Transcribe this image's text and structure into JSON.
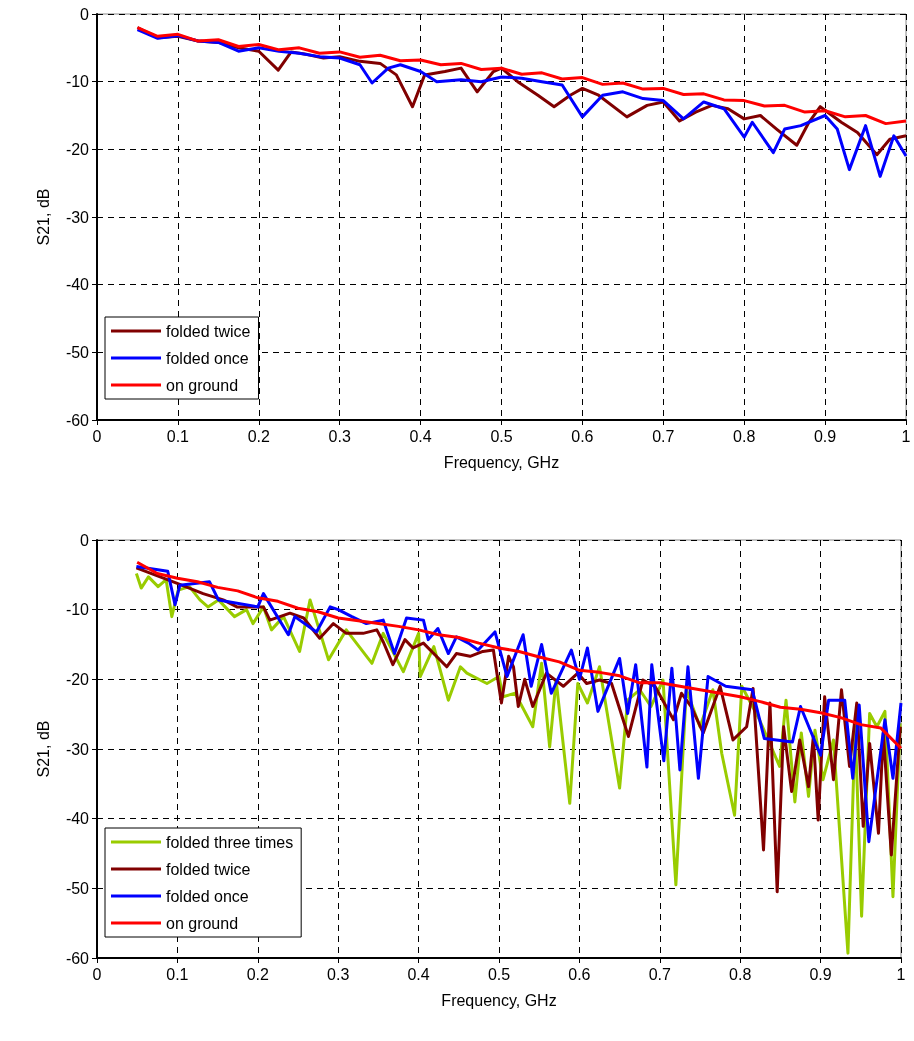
{
  "chart_data": [
    {
      "type": "line",
      "xlabel": "Frequency, GHz",
      "ylabel": "S21, dB",
      "xlim": [
        0,
        1
      ],
      "ylim": [
        -60,
        0
      ],
      "xticks": [
        0,
        0.1,
        0.2,
        0.3,
        0.4,
        0.5,
        0.6,
        0.7,
        0.8,
        0.9,
        1
      ],
      "yticks": [
        -60,
        -50,
        -40,
        -30,
        -20,
        -10,
        0
      ],
      "grid": true,
      "legend": "bottom left",
      "series": [
        {
          "name": "folded twice",
          "color": "#800000",
          "x": [
            0.05,
            0.075,
            0.1,
            0.125,
            0.15,
            0.175,
            0.2,
            0.224,
            0.24,
            0.26,
            0.28,
            0.3,
            0.325,
            0.35,
            0.37,
            0.39,
            0.405,
            0.43,
            0.45,
            0.47,
            0.49,
            0.5,
            0.52,
            0.545,
            0.565,
            0.585,
            0.6,
            0.62,
            0.655,
            0.68,
            0.7,
            0.72,
            0.74,
            0.76,
            0.78,
            0.8,
            0.82,
            0.84,
            0.865,
            0.88,
            0.894,
            0.92,
            0.94,
            0.964,
            0.98,
            1
          ],
          "values": [
            -2,
            -3.5,
            -3.3,
            -4,
            -4.2,
            -5,
            -5.5,
            -8.3,
            -5.6,
            -6,
            -6.5,
            -6.3,
            -7,
            -7.3,
            -9,
            -13.7,
            -9,
            -8.5,
            -8,
            -11.5,
            -8.5,
            -8,
            -10,
            -12,
            -13.7,
            -12,
            -11,
            -12,
            -15.2,
            -13.5,
            -13,
            -15.8,
            -14.5,
            -13.5,
            -14,
            -15.5,
            -15,
            -17,
            -19.4,
            -16,
            -13.7,
            -16,
            -17.5,
            -20.8,
            -18.5,
            -18
          ]
        },
        {
          "name": "folded once",
          "color": "#0000ff",
          "x": [
            0.05,
            0.075,
            0.1,
            0.125,
            0.15,
            0.175,
            0.2,
            0.225,
            0.25,
            0.275,
            0.3,
            0.325,
            0.34,
            0.36,
            0.375,
            0.4,
            0.42,
            0.45,
            0.475,
            0.5,
            0.525,
            0.55,
            0.575,
            0.6,
            0.625,
            0.65,
            0.675,
            0.7,
            0.725,
            0.75,
            0.775,
            0.8,
            0.81,
            0.836,
            0.85,
            0.87,
            0.9,
            0.915,
            0.93,
            0.95,
            0.968,
            0.985,
            1
          ],
          "values": [
            -2.3,
            -3.6,
            -3.2,
            -4,
            -4.2,
            -5.5,
            -5,
            -5.5,
            -5.8,
            -6.3,
            -6.5,
            -7.5,
            -10.2,
            -8,
            -7.5,
            -8.5,
            -10,
            -9.7,
            -10,
            -9.3,
            -9.5,
            -10,
            -10.5,
            -15.2,
            -12,
            -11.5,
            -12.5,
            -12.8,
            -15.5,
            -13,
            -14,
            -18.2,
            -16,
            -20.5,
            -17,
            -16.5,
            -15,
            -17,
            -23,
            -16.5,
            -24,
            -18,
            -21
          ]
        },
        {
          "name": "on ground",
          "color": "#ff0000",
          "x": [
            0.05,
            0.075,
            0.1,
            0.125,
            0.15,
            0.175,
            0.2,
            0.225,
            0.25,
            0.275,
            0.3,
            0.325,
            0.35,
            0.375,
            0.4,
            0.425,
            0.45,
            0.475,
            0.5,
            0.525,
            0.55,
            0.575,
            0.6,
            0.625,
            0.65,
            0.675,
            0.7,
            0.725,
            0.75,
            0.775,
            0.8,
            0.825,
            0.85,
            0.875,
            0.9,
            0.925,
            0.95,
            0.975,
            1
          ],
          "values": [
            -2,
            -3.3,
            -3,
            -4,
            -3.8,
            -4.8,
            -4.5,
            -5.3,
            -5,
            -5.8,
            -5.6,
            -6.4,
            -6.1,
            -6.9,
            -6.8,
            -7.5,
            -7.3,
            -8.2,
            -8,
            -8.9,
            -8.7,
            -9.6,
            -9.4,
            -10.4,
            -10.2,
            -11.1,
            -11,
            -11.9,
            -11.8,
            -12.7,
            -12.8,
            -13.6,
            -13.5,
            -14.5,
            -14.3,
            -15.2,
            -15,
            -16.2,
            -15.8
          ]
        }
      ]
    },
    {
      "type": "line",
      "xlabel": "Frequency, GHz",
      "ylabel": "S21, dB",
      "xlim": [
        0,
        1
      ],
      "ylim": [
        -60,
        0
      ],
      "xticks": [
        0,
        0.1,
        0.2,
        0.3,
        0.4,
        0.5,
        0.6,
        0.7,
        0.8,
        0.9,
        1
      ],
      "yticks": [
        -60,
        -50,
        -40,
        -30,
        -20,
        -10,
        0
      ],
      "grid": true,
      "legend": "bottom left",
      "series": [
        {
          "name": "folded three times",
          "color": "#99cc00",
          "x": [
            0.049,
            0.055,
            0.064,
            0.076,
            0.086,
            0.093,
            0.101,
            0.115,
            0.128,
            0.138,
            0.151,
            0.171,
            0.186,
            0.194,
            0.207,
            0.217,
            0.232,
            0.252,
            0.265,
            0.288,
            0.31,
            0.342,
            0.356,
            0.381,
            0.4,
            0.402,
            0.419,
            0.437,
            0.452,
            0.46,
            0.485,
            0.5,
            0.505,
            0.52,
            0.542,
            0.553,
            0.563,
            0.571,
            0.588,
            0.598,
            0.61,
            0.625,
            0.65,
            0.66,
            0.675,
            0.689,
            0.704,
            0.72,
            0.733,
            0.75,
            0.766,
            0.777,
            0.793,
            0.802,
            0.824,
            0.849,
            0.857,
            0.868,
            0.876,
            0.885,
            0.893,
            0.903,
            0.916,
            0.934,
            0.943,
            0.951,
            0.961,
            0.97,
            0.98,
            0.99,
            0.999
          ],
          "values": [
            -4.8,
            -6.9,
            -5.3,
            -6.7,
            -5.7,
            -11,
            -7.2,
            -6.7,
            -8.6,
            -9.6,
            -8.6,
            -11,
            -10,
            -12,
            -9.6,
            -12.9,
            -11,
            -16,
            -8.6,
            -17.2,
            -12.9,
            -17.7,
            -13.4,
            -18.9,
            -13.4,
            -19.6,
            -15.3,
            -23,
            -18.2,
            -19.1,
            -20.6,
            -19.6,
            -22.5,
            -22,
            -26.8,
            -17.7,
            -29.7,
            -20.1,
            -37.8,
            -20.6,
            -23.4,
            -18.2,
            -35.6,
            -23,
            -21.5,
            -23.9,
            -20.1,
            -49.5,
            -21.5,
            -26.8,
            -21.5,
            -30.6,
            -39.5,
            -21,
            -25.8,
            -32.5,
            -23,
            -37.6,
            -27.7,
            -36.8,
            -27.3,
            -34.4,
            -28.7,
            -59.3,
            -26.8,
            -54,
            -24.9,
            -26.8,
            -24.6,
            -51.2,
            -26.3
          ]
        },
        {
          "name": "folded twice",
          "color": "#800000",
          "x": [
            0.049,
            0.099,
            0.132,
            0.157,
            0.174,
            0.207,
            0.215,
            0.24,
            0.257,
            0.277,
            0.294,
            0.31,
            0.331,
            0.348,
            0.356,
            0.368,
            0.383,
            0.393,
            0.406,
            0.435,
            0.447,
            0.464,
            0.48,
            0.493,
            0.503,
            0.512,
            0.518,
            0.524,
            0.532,
            0.542,
            0.559,
            0.58,
            0.598,
            0.609,
            0.625,
            0.64,
            0.661,
            0.679,
            0.694,
            0.717,
            0.727,
            0.739,
            0.754,
            0.775,
            0.791,
            0.808,
            0.816,
            0.829,
            0.837,
            0.846,
            0.854,
            0.864,
            0.874,
            0.885,
            0.891,
            0.897,
            0.905,
            0.916,
            0.926,
            0.936,
            0.945,
            0.953,
            0.961,
            0.972,
            0.978,
            0.988,
            0.999
          ],
          "values": [
            -4,
            -6.2,
            -7.7,
            -8.6,
            -9.6,
            -9.6,
            -11.5,
            -10.5,
            -11.2,
            -14.1,
            -12,
            -13.4,
            -13.4,
            -12.9,
            -14.6,
            -17.9,
            -14.3,
            -15.5,
            -14.8,
            -18.2,
            -16.3,
            -16.7,
            -16,
            -15.8,
            -23.4,
            -16.7,
            -18.2,
            -23.9,
            -20,
            -23.9,
            -19.1,
            -21,
            -19.1,
            -20.6,
            -20.1,
            -20.6,
            -28.2,
            -20.1,
            -21,
            -25.8,
            -22,
            -23.9,
            -27.7,
            -21,
            -28.7,
            -26.8,
            -21.3,
            -44.5,
            -23.4,
            -50.5,
            -26.8,
            -36.1,
            -28.7,
            -35.4,
            -28.2,
            -40.2,
            -22.5,
            -34.4,
            -21.5,
            -32.5,
            -23.4,
            -41.1,
            -29.2,
            -42.1,
            -27.7,
            -45.2,
            -26.8
          ]
        },
        {
          "name": "folded once",
          "color": "#0000ff",
          "x": [
            0.049,
            0.088,
            0.097,
            0.103,
            0.14,
            0.151,
            0.2,
            0.207,
            0.238,
            0.246,
            0.273,
            0.29,
            0.3,
            0.317,
            0.335,
            0.356,
            0.37,
            0.385,
            0.406,
            0.412,
            0.424,
            0.437,
            0.447,
            0.462,
            0.474,
            0.495,
            0.51,
            0.53,
            0.54,
            0.553,
            0.565,
            0.59,
            0.6,
            0.61,
            0.623,
            0.65,
            0.66,
            0.67,
            0.684,
            0.69,
            0.705,
            0.715,
            0.725,
            0.735,
            0.748,
            0.76,
            0.782,
            0.815,
            0.83,
            0.865,
            0.875,
            0.9,
            0.91,
            0.93,
            0.94,
            0.948,
            0.96,
            0.98,
            0.99,
            1
          ],
          "values": [
            -3.8,
            -4.5,
            -9.3,
            -6.5,
            -6,
            -8.6,
            -9.6,
            -7.7,
            -13.6,
            -11,
            -13.2,
            -9.6,
            -10,
            -11,
            -12,
            -11.5,
            -16.3,
            -11.2,
            -11.5,
            -14.3,
            -12.7,
            -16.3,
            -13.9,
            -14.8,
            -15.8,
            -13.2,
            -19.6,
            -13.6,
            -21,
            -15,
            -22,
            -15.8,
            -20,
            -15.5,
            -24.6,
            -17,
            -24.9,
            -17.9,
            -32.6,
            -17.9,
            -31.7,
            -18.4,
            -33,
            -18.2,
            -34.2,
            -19.6,
            -21,
            -21.5,
            -28.5,
            -29,
            -23.9,
            -30.9,
            -23,
            -23,
            -34.2,
            -23.7,
            -43.3,
            -25.8,
            -34.2,
            -23.4
          ]
        },
        {
          "name": "on ground",
          "color": "#ff0000",
          "x": [
            0.05,
            0.075,
            0.1,
            0.125,
            0.15,
            0.175,
            0.2,
            0.225,
            0.25,
            0.275,
            0.3,
            0.325,
            0.35,
            0.375,
            0.4,
            0.425,
            0.45,
            0.475,
            0.5,
            0.525,
            0.55,
            0.575,
            0.6,
            0.625,
            0.65,
            0.675,
            0.7,
            0.725,
            0.75,
            0.775,
            0.8,
            0.825,
            0.85,
            0.875,
            0.9,
            0.925,
            0.95,
            0.975,
            1
          ],
          "values": [
            -3.2,
            -4.8,
            -5.5,
            -6,
            -6.8,
            -7.3,
            -8.3,
            -8.8,
            -9.8,
            -10.3,
            -11.2,
            -11.6,
            -12,
            -12.4,
            -12.9,
            -13.6,
            -14,
            -14.8,
            -15.5,
            -16,
            -16.8,
            -17.5,
            -18.7,
            -19,
            -19.5,
            -20.5,
            -20.5,
            -21,
            -21.5,
            -22,
            -22.5,
            -23.2,
            -24,
            -24.3,
            -24.8,
            -25.5,
            -26.5,
            -27,
            -29.9
          ]
        }
      ]
    }
  ]
}
